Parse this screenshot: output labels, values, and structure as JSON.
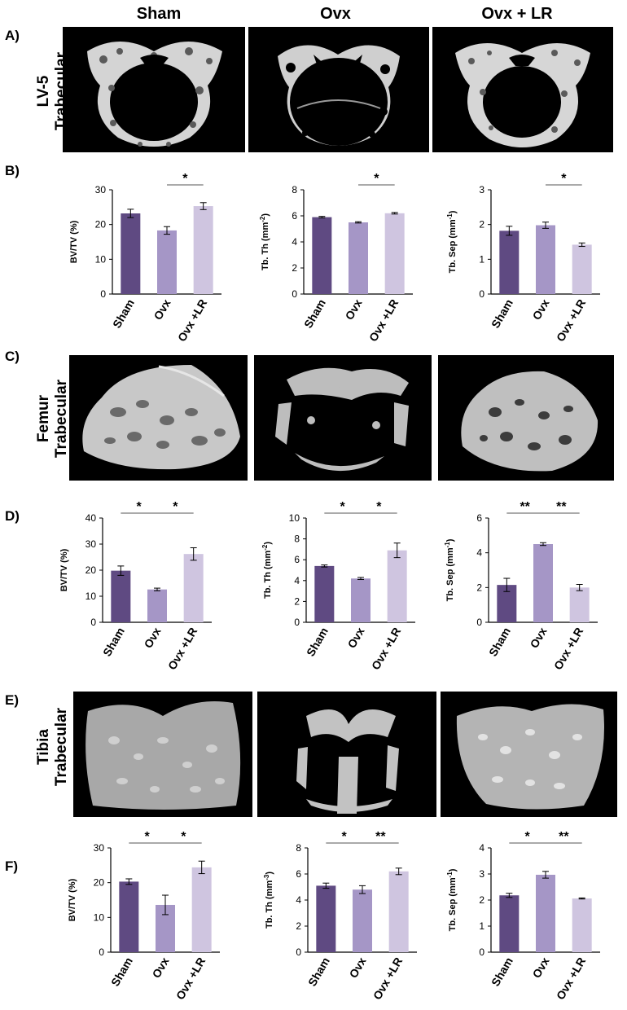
{
  "columns": [
    "Sham",
    "Ovx",
    "Ovx + LR"
  ],
  "panels": {
    "A": {
      "letter": "A)",
      "row_label_1": "LV-5",
      "row_label_2": "Trabecular"
    },
    "B": {
      "letter": "B)"
    },
    "C": {
      "letter": "C)",
      "row_label_1": "Femur",
      "row_label_2": "Trabecular"
    },
    "D": {
      "letter": "D)"
    },
    "E": {
      "letter": "E)",
      "row_label_1": "Tibia",
      "row_label_2": "Trabecular"
    },
    "F": {
      "letter": "F)"
    }
  },
  "colors": {
    "sham": "#5f4a82",
    "ovx": "#a596c6",
    "ovx_lr": "#cfc5e0",
    "scan_bg": "#000000",
    "bone": "#d4d4d4"
  },
  "chart_data": [
    {
      "id": "B1",
      "type": "bar",
      "categories": [
        "Sham",
        "Ovx",
        "Ovx +LR"
      ],
      "values": [
        23.2,
        18.3,
        25.3
      ],
      "errors": [
        1.2,
        1.1,
        1.0
      ],
      "ylabel": "BV/TV (%)",
      "ylabel_sup": "",
      "ylabel_end": "",
      "ylim": [
        0,
        30
      ],
      "yticks": [
        "0",
        "10",
        "20",
        "30"
      ],
      "sig": [
        {
          "from": 1,
          "to": 2,
          "label": "*"
        }
      ]
    },
    {
      "id": "B2",
      "type": "bar",
      "categories": [
        "Sham",
        "Ovx",
        "Ovx +LR"
      ],
      "values": [
        5.9,
        5.5,
        6.2
      ],
      "errors": [
        0.06,
        0.05,
        0.06
      ],
      "ylabel": "Tb. Th (mm",
      "ylabel_sup": "-2",
      "ylabel_end": ")",
      "ylim": [
        0,
        8
      ],
      "yticks": [
        "0",
        "2",
        "4",
        "6",
        "8"
      ],
      "sig": [
        {
          "from": 1,
          "to": 2,
          "label": "*"
        }
      ]
    },
    {
      "id": "B3",
      "type": "bar",
      "categories": [
        "Sham",
        "Ovx",
        "Ovx +LR"
      ],
      "values": [
        1.82,
        1.98,
        1.42
      ],
      "errors": [
        0.13,
        0.09,
        0.05
      ],
      "ylabel": "Tb. Sep (mm",
      "ylabel_sup": "-1",
      "ylabel_end": ")",
      "ylim": [
        0,
        3
      ],
      "yticks": [
        "0",
        "1",
        "2",
        "3"
      ],
      "sig": [
        {
          "from": 1,
          "to": 2,
          "label": "*"
        }
      ]
    },
    {
      "id": "D1",
      "type": "bar",
      "categories": [
        "Sham",
        "Ovx",
        "Ovx +LR"
      ],
      "values": [
        19.8,
        12.6,
        26.2
      ],
      "errors": [
        1.8,
        0.5,
        2.4
      ],
      "ylabel": "BV/TV (%)",
      "ylabel_sup": "",
      "ylabel_end": "",
      "ylim": [
        0,
        40
      ],
      "yticks": [
        "0",
        "10",
        "20",
        "30",
        "40"
      ],
      "sig": [
        {
          "from": 0,
          "to": 1,
          "label": "*"
        },
        {
          "from": 1,
          "to": 2,
          "label": "*"
        }
      ]
    },
    {
      "id": "D2",
      "type": "bar",
      "categories": [
        "Sham",
        "Ovx",
        "Ovx +LR"
      ],
      "values": [
        5.4,
        4.2,
        6.9
      ],
      "errors": [
        0.1,
        0.1,
        0.7
      ],
      "ylabel": "Tb. Th (mm",
      "ylabel_sup": "-2",
      "ylabel_end": ")",
      "ylim": [
        0,
        10
      ],
      "yticks": [
        "0",
        "2",
        "4",
        "6",
        "8",
        "10"
      ],
      "sig": [
        {
          "from": 0,
          "to": 1,
          "label": "*"
        },
        {
          "from": 1,
          "to": 2,
          "label": "*"
        }
      ]
    },
    {
      "id": "D3",
      "type": "bar",
      "categories": [
        "Sham",
        "Ovx",
        "Ovx +LR"
      ],
      "values": [
        2.15,
        4.5,
        2.0
      ],
      "errors": [
        0.38,
        0.08,
        0.18
      ],
      "ylabel": "Tb. Sep (mm",
      "ylabel_sup": "-1",
      "ylabel_end": ")",
      "ylim": [
        0,
        6
      ],
      "yticks": [
        "0",
        "2",
        "4",
        "6"
      ],
      "sig": [
        {
          "from": 0,
          "to": 1,
          "label": "**"
        },
        {
          "from": 1,
          "to": 2,
          "label": "**"
        }
      ]
    },
    {
      "id": "F1",
      "type": "bar",
      "categories": [
        "Sham",
        "Ovx",
        "Ovx +LR"
      ],
      "values": [
        20.3,
        13.6,
        24.4
      ],
      "errors": [
        0.8,
        2.8,
        1.8
      ],
      "ylabel": "BV/TV (%)",
      "ylabel_sup": "",
      "ylabel_end": "",
      "ylim": [
        0,
        30
      ],
      "yticks": [
        "0",
        "10",
        "20",
        "30"
      ],
      "sig": [
        {
          "from": 0,
          "to": 1,
          "label": "*"
        },
        {
          "from": 1,
          "to": 2,
          "label": "*"
        }
      ]
    },
    {
      "id": "F2",
      "type": "bar",
      "categories": [
        "Sham",
        "Ovx",
        "Ovx +LR"
      ],
      "values": [
        5.1,
        4.8,
        6.2
      ],
      "errors": [
        0.2,
        0.3,
        0.25
      ],
      "ylabel": "Tb. Th (mm",
      "ylabel_sup": "-3",
      "ylabel_end": ")",
      "ylim": [
        0,
        8
      ],
      "yticks": [
        "0",
        "2",
        "4",
        "6",
        "8"
      ],
      "sig": [
        {
          "from": 0,
          "to": 1,
          "label": "*"
        },
        {
          "from": 1,
          "to": 2,
          "label": "**"
        }
      ]
    },
    {
      "id": "F3",
      "type": "bar",
      "categories": [
        "Sham",
        "Ovx",
        "Ovx +LR"
      ],
      "values": [
        2.18,
        2.97,
        2.06
      ],
      "errors": [
        0.08,
        0.13,
        0.02
      ],
      "ylabel": "Tb. Sep (mm",
      "ylabel_sup": "-1",
      "ylabel_end": ")",
      "ylim": [
        0,
        4
      ],
      "yticks": [
        "0",
        "1",
        "2",
        "3",
        "4"
      ],
      "sig": [
        {
          "from": 0,
          "to": 1,
          "label": "*"
        },
        {
          "from": 1,
          "to": 2,
          "label": "**"
        }
      ]
    }
  ]
}
